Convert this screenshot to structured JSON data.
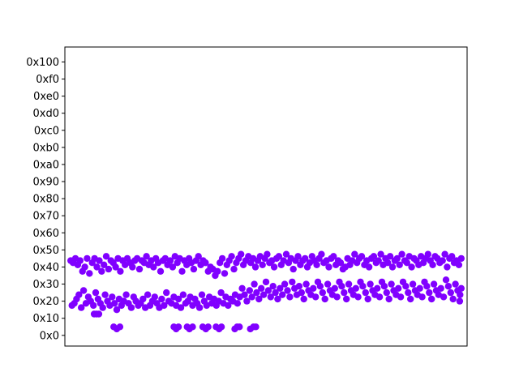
{
  "chart_data": {
    "type": "scatter",
    "title": "",
    "xlabel": "",
    "ylabel": "",
    "x_ticks_visible": false,
    "xlim": [
      -15,
      1015
    ],
    "ylim": [
      -10,
      270
    ],
    "y_ticks": [
      {
        "value": 0,
        "label": "0x0"
      },
      {
        "value": 16,
        "label": "0x10"
      },
      {
        "value": 32,
        "label": "0x20"
      },
      {
        "value": 48,
        "label": "0x30"
      },
      {
        "value": 64,
        "label": "0x40"
      },
      {
        "value": 80,
        "label": "0x50"
      },
      {
        "value": 96,
        "label": "0x60"
      },
      {
        "value": 112,
        "label": "0x70"
      },
      {
        "value": 128,
        "label": "0x80"
      },
      {
        "value": 144,
        "label": "0x90"
      },
      {
        "value": 160,
        "label": "0xa0"
      },
      {
        "value": 176,
        "label": "0xb0"
      },
      {
        "value": 192,
        "label": "0xc0"
      },
      {
        "value": 208,
        "label": "0xd0"
      },
      {
        "value": 224,
        "label": "0xe0"
      },
      {
        "value": 240,
        "label": "0xf0"
      },
      {
        "value": 256,
        "label": "0x100"
      }
    ],
    "marker_color": "#8000ff",
    "grid": false,
    "series": [
      {
        "x": [
          0,
          6,
          12,
          18,
          24,
          30,
          36,
          42,
          48,
          55,
          61,
          67,
          73,
          79,
          85,
          91,
          97,
          103,
          109,
          115,
          121,
          127,
          133,
          139,
          145,
          152,
          158,
          164,
          170,
          176,
          182,
          188,
          194,
          200,
          206,
          212,
          218,
          224,
          230,
          236,
          242,
          248,
          255,
          261,
          267,
          273,
          279,
          285,
          291,
          297,
          303,
          309,
          315,
          321,
          327,
          333,
          339,
          345,
          352,
          358,
          364,
          370,
          376,
          382,
          388,
          394,
          400,
          406,
          412,
          418,
          424,
          430,
          436,
          442,
          448,
          455,
          461,
          467,
          473,
          479,
          485,
          491,
          497,
          503,
          509,
          515,
          521,
          527,
          533,
          539,
          545,
          552,
          558,
          564,
          570,
          576,
          582,
          588,
          594,
          600,
          606,
          612,
          618,
          624,
          630,
          636,
          642,
          648,
          655,
          661,
          667,
          673,
          679,
          685,
          691,
          697,
          703,
          709,
          715,
          721,
          727,
          733,
          739,
          745,
          752,
          758,
          764,
          770,
          776,
          782,
          788,
          794,
          800,
          806,
          812,
          818,
          824,
          830,
          836,
          842,
          848,
          855,
          861,
          867,
          873,
          879,
          885,
          891,
          897,
          903,
          909,
          915,
          921,
          927,
          933,
          939,
          945,
          952,
          958,
          964,
          970,
          976,
          982,
          988,
          994,
          1000,
          3,
          9,
          15,
          21,
          27,
          33,
          39,
          45,
          51,
          58,
          64,
          70,
          76,
          82,
          88,
          94,
          100,
          106,
          112,
          118,
          124,
          130,
          136,
          142,
          148,
          155,
          161,
          167,
          173,
          179,
          185,
          191,
          197,
          203,
          209,
          215,
          221,
          227,
          233,
          239,
          245,
          251,
          258,
          264,
          270,
          276,
          282,
          288,
          294,
          300,
          306,
          312,
          318,
          324,
          330,
          336,
          342,
          348,
          355,
          361,
          367,
          373,
          379,
          385,
          391,
          397,
          403,
          409,
          415,
          421,
          427,
          433,
          439,
          445,
          451,
          458,
          464,
          470,
          476,
          482,
          488,
          494,
          500,
          506,
          512,
          518,
          524,
          530,
          536,
          542,
          548,
          555,
          561,
          567,
          573,
          579,
          585,
          591,
          597,
          603,
          609,
          615,
          621,
          627,
          633,
          639,
          645,
          651,
          658,
          664,
          670,
          676,
          682,
          688,
          694,
          700,
          706,
          712,
          718,
          724,
          730,
          736,
          742,
          748,
          755,
          761,
          767,
          773,
          779,
          785,
          791,
          797,
          803,
          809,
          815,
          821,
          827,
          833,
          839,
          845,
          851,
          858,
          864,
          870,
          876,
          882,
          888,
          894,
          900,
          906,
          912,
          918,
          924,
          930,
          936,
          942,
          948,
          955,
          961,
          967,
          973,
          979,
          985,
          991,
          997,
          1000,
          996,
          60,
          66,
          72,
          110,
          118,
          126,
          264,
          270,
          276,
          298,
          304,
          312,
          338,
          346,
          352,
          372,
          380,
          386,
          420,
          426,
          432,
          460,
          468,
          474
        ],
        "y": [
          70,
          68,
          72,
          66,
          70,
          60,
          64,
          72,
          58,
          68,
          72,
          64,
          70,
          60,
          66,
          74,
          62,
          70,
          68,
          64,
          72,
          60,
          70,
          66,
          72,
          68,
          64,
          70,
          72,
          62,
          70,
          68,
          74,
          66,
          70,
          64,
          72,
          68,
          60,
          70,
          72,
          66,
          70,
          64,
          74,
          68,
          72,
          60,
          70,
          66,
          72,
          68,
          62,
          70,
          74,
          66,
          70,
          68,
          60,
          64,
          62,
          56,
          60,
          68,
          72,
          58,
          66,
          70,
          74,
          62,
          68,
          72,
          76,
          66,
          70,
          74,
          68,
          72,
          64,
          70,
          74,
          66,
          72,
          76,
          68,
          70,
          64,
          72,
          74,
          66,
          70,
          76,
          68,
          72,
          62,
          70,
          74,
          66,
          70,
          72,
          64,
          68,
          74,
          70,
          66,
          72,
          76,
          68,
          70,
          64,
          72,
          74,
          66,
          70,
          68,
          62,
          64,
          72,
          66,
          70,
          76,
          68,
          72,
          74,
          66,
          70,
          64,
          72,
          74,
          68,
          70,
          76,
          66,
          72,
          68,
          74,
          64,
          70,
          72,
          66,
          76,
          70,
          68,
          74,
          64,
          72,
          70,
          66,
          74,
          68,
          72,
          76,
          70,
          66,
          74,
          72,
          68,
          70,
          76,
          64,
          72,
          74,
          68,
          70,
          66,
          72,
          28,
          30,
          34,
          38,
          26,
          42,
          30,
          36,
          32,
          28,
          40,
          34,
          30,
          26,
          38,
          32,
          28,
          36,
          30,
          24,
          34,
          28,
          32,
          38,
          30,
          26,
          36,
          32,
          28,
          30,
          34,
          26,
          38,
          28,
          32,
          36,
          30,
          26,
          34,
          28,
          40,
          32,
          30,
          36,
          28,
          34,
          26,
          38,
          30,
          32,
          36,
          28,
          34,
          30,
          26,
          38,
          32,
          28,
          36,
          30,
          34,
          28,
          32,
          40,
          30,
          36,
          28,
          34,
          32,
          38,
          30,
          36,
          44,
          38,
          32,
          42,
          36,
          48,
          40,
          34,
          44,
          38,
          50,
          42,
          36,
          46,
          40,
          34,
          44,
          38,
          48,
          42,
          36,
          50,
          44,
          38,
          46,
          40,
          34,
          48,
          42,
          38,
          44,
          36,
          50,
          46,
          40,
          34,
          48,
          42,
          38,
          44,
          36,
          50,
          46,
          40,
          34,
          48,
          42,
          38,
          44,
          36,
          50,
          46,
          40,
          34,
          48,
          42,
          38,
          44,
          36,
          50,
          46,
          40,
          34,
          48,
          42,
          38,
          44,
          36,
          50,
          46,
          40,
          34,
          48,
          42,
          38,
          44,
          36,
          50,
          46,
          40,
          34,
          48,
          42,
          38,
          44,
          36,
          52,
          46,
          40,
          34,
          48,
          42,
          38,
          44,
          32,
          20,
          20,
          20,
          8,
          6,
          8,
          8,
          6,
          8,
          8,
          6,
          8,
          8,
          6,
          8,
          8,
          6,
          8,
          6,
          8,
          8,
          6,
          8,
          8
        ]
      }
    ]
  }
}
